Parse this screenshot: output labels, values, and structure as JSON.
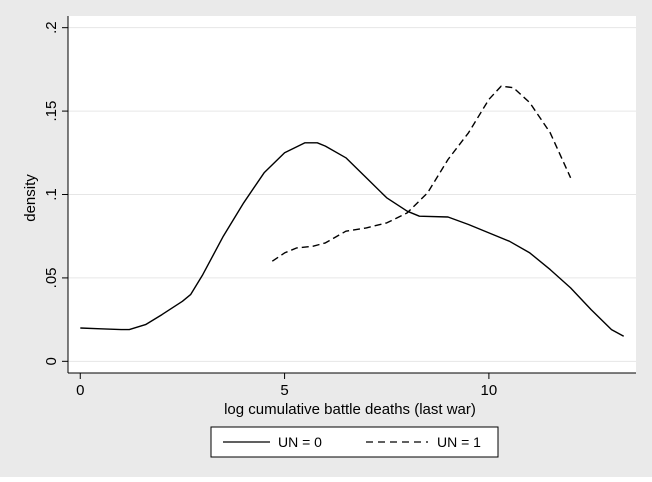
{
  "chart_data": {
    "type": "line",
    "title": "",
    "xlabel": "log cumulative battle deaths (last war)",
    "ylabel": "density",
    "xlim": [
      -0.3,
      13.6
    ],
    "ylim": [
      -0.007,
      0.207
    ],
    "x_ticks": [
      0,
      5,
      10
    ],
    "x_tick_labels": [
      "0",
      "5",
      "10"
    ],
    "y_ticks": [
      0,
      0.05,
      0.1,
      0.15,
      0.2
    ],
    "y_tick_labels": [
      "0",
      ".05",
      ".1",
      ".15",
      ".2"
    ],
    "grid": "horizontal",
    "legend_position": "bottom",
    "colors": {
      "outer_background": "#eaeaea",
      "plot_background": "#ffffff",
      "grid": "#e6e6e6",
      "line": "#000000"
    },
    "series": [
      {
        "name": "UN = 0",
        "style": "solid",
        "points": [
          [
            0.0,
            0.02
          ],
          [
            0.5,
            0.0195
          ],
          [
            1.0,
            0.019
          ],
          [
            1.2,
            0.019
          ],
          [
            1.6,
            0.022
          ],
          [
            2.0,
            0.028
          ],
          [
            2.5,
            0.036
          ],
          [
            2.7,
            0.04
          ],
          [
            3.0,
            0.052
          ],
          [
            3.5,
            0.075
          ],
          [
            4.0,
            0.095
          ],
          [
            4.5,
            0.113
          ],
          [
            5.0,
            0.125
          ],
          [
            5.5,
            0.131
          ],
          [
            5.8,
            0.131
          ],
          [
            6.0,
            0.129
          ],
          [
            6.5,
            0.122
          ],
          [
            7.0,
            0.11
          ],
          [
            7.5,
            0.098
          ],
          [
            8.0,
            0.09
          ],
          [
            8.3,
            0.087
          ],
          [
            9.0,
            0.0865
          ],
          [
            9.5,
            0.082
          ],
          [
            10.0,
            0.077
          ],
          [
            10.5,
            0.072
          ],
          [
            11.0,
            0.065
          ],
          [
            11.5,
            0.055
          ],
          [
            12.0,
            0.044
          ],
          [
            12.5,
            0.031
          ],
          [
            13.0,
            0.019
          ],
          [
            13.3,
            0.015
          ]
        ]
      },
      {
        "name": "UN = 1",
        "style": "dashed",
        "points": [
          [
            4.7,
            0.06
          ],
          [
            5.0,
            0.065
          ],
          [
            5.3,
            0.068
          ],
          [
            5.7,
            0.069
          ],
          [
            6.0,
            0.071
          ],
          [
            6.5,
            0.078
          ],
          [
            7.0,
            0.08
          ],
          [
            7.5,
            0.083
          ],
          [
            8.0,
            0.089
          ],
          [
            8.5,
            0.101
          ],
          [
            9.0,
            0.121
          ],
          [
            9.5,
            0.137
          ],
          [
            10.0,
            0.157
          ],
          [
            10.3,
            0.165
          ],
          [
            10.6,
            0.164
          ],
          [
            11.0,
            0.155
          ],
          [
            11.5,
            0.137
          ],
          [
            12.0,
            0.11
          ]
        ]
      }
    ]
  }
}
